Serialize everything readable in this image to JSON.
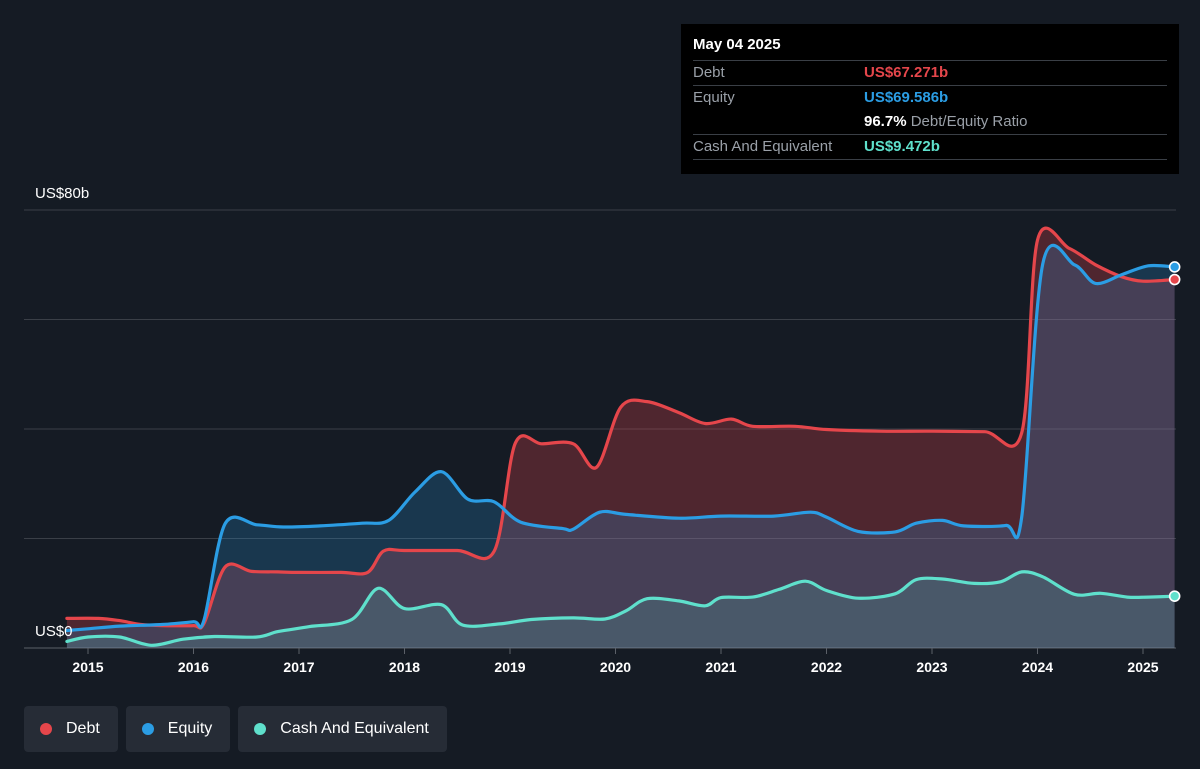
{
  "colors": {
    "debt": "#e5464b",
    "equity": "#2b9de4",
    "cash": "#5fe0cc",
    "background": "#151b24"
  },
  "tooltip": {
    "date": "May 04 2025",
    "debt_label": "Debt",
    "debt_value": "US$67.271b",
    "equity_label": "Equity",
    "equity_value": "US$69.586b",
    "ratio_value": "96.7%",
    "ratio_label": "Debt/Equity Ratio",
    "cash_label": "Cash And Equivalent",
    "cash_value": "US$9.472b"
  },
  "legend": {
    "debt": "Debt",
    "equity": "Equity",
    "cash": "Cash And Equivalent"
  },
  "chart_data": {
    "type": "area",
    "ylim": [
      0,
      80
    ],
    "y_tick_labels": {
      "top": "US$80b",
      "bottom": "US$0"
    },
    "x_ticks": [
      2015,
      2016,
      2017,
      2018,
      2019,
      2020,
      2021,
      2022,
      2023,
      2024,
      2025
    ],
    "x_tick_labels": [
      "2015",
      "2016",
      "2017",
      "2018",
      "2019",
      "2020",
      "2021",
      "2022",
      "2023",
      "2024",
      "2025"
    ],
    "grid": true,
    "legend_position": "bottom-left",
    "series": [
      {
        "name": "Debt",
        "color": "#e5464b",
        "points": [
          [
            2014.8,
            5.4
          ],
          [
            2015.1,
            5.4
          ],
          [
            2015.3,
            5.0
          ],
          [
            2015.5,
            4.3
          ],
          [
            2015.7,
            4.1
          ],
          [
            2016.0,
            4.1
          ],
          [
            2016.1,
            4.5
          ],
          [
            2016.3,
            14.8
          ],
          [
            2016.55,
            14.0
          ],
          [
            2016.8,
            13.9
          ],
          [
            2017.0,
            13.8
          ],
          [
            2017.4,
            13.8
          ],
          [
            2017.65,
            13.8
          ],
          [
            2017.8,
            17.7
          ],
          [
            2018.0,
            17.8
          ],
          [
            2018.5,
            17.8
          ],
          [
            2018.85,
            17.7
          ],
          [
            2019.05,
            37.4
          ],
          [
            2019.3,
            37.3
          ],
          [
            2019.6,
            37.3
          ],
          [
            2019.82,
            33.0
          ],
          [
            2020.05,
            44.0
          ],
          [
            2020.3,
            45.0
          ],
          [
            2020.6,
            43.0
          ],
          [
            2020.85,
            41.0
          ],
          [
            2021.1,
            41.8
          ],
          [
            2021.3,
            40.5
          ],
          [
            2021.7,
            40.5
          ],
          [
            2022.0,
            39.9
          ],
          [
            2022.5,
            39.6
          ],
          [
            2023.0,
            39.6
          ],
          [
            2023.5,
            39.5
          ],
          [
            2023.85,
            39.3
          ],
          [
            2024.0,
            74.5
          ],
          [
            2024.3,
            73.0
          ],
          [
            2024.55,
            70.0
          ],
          [
            2024.8,
            67.8
          ],
          [
            2025.0,
            67.0
          ],
          [
            2025.3,
            67.3
          ]
        ]
      },
      {
        "name": "Equity",
        "color": "#2b9de4",
        "points": [
          [
            2014.8,
            3.2
          ],
          [
            2015.0,
            3.5
          ],
          [
            2015.3,
            4.0
          ],
          [
            2015.7,
            4.3
          ],
          [
            2016.0,
            4.8
          ],
          [
            2016.1,
            5.1
          ],
          [
            2016.3,
            22.7
          ],
          [
            2016.6,
            22.5
          ],
          [
            2016.85,
            22.1
          ],
          [
            2017.2,
            22.3
          ],
          [
            2017.6,
            22.8
          ],
          [
            2017.85,
            23.3
          ],
          [
            2018.1,
            28.5
          ],
          [
            2018.35,
            32.2
          ],
          [
            2018.6,
            27.2
          ],
          [
            2018.85,
            26.7
          ],
          [
            2019.1,
            23.0
          ],
          [
            2019.5,
            21.8
          ],
          [
            2019.6,
            21.7
          ],
          [
            2019.85,
            24.8
          ],
          [
            2020.1,
            24.4
          ],
          [
            2020.6,
            23.7
          ],
          [
            2021.0,
            24.1
          ],
          [
            2021.5,
            24.1
          ],
          [
            2021.85,
            24.8
          ],
          [
            2022.0,
            23.9
          ],
          [
            2022.3,
            21.3
          ],
          [
            2022.65,
            21.2
          ],
          [
            2022.85,
            22.8
          ],
          [
            2023.1,
            23.3
          ],
          [
            2023.3,
            22.3
          ],
          [
            2023.7,
            22.4
          ],
          [
            2023.85,
            23.9
          ],
          [
            2024.05,
            70.2
          ],
          [
            2024.35,
            70.0
          ],
          [
            2024.55,
            66.6
          ],
          [
            2024.8,
            68.2
          ],
          [
            2025.05,
            69.8
          ],
          [
            2025.3,
            69.6
          ]
        ]
      },
      {
        "name": "Cash And Equivalent",
        "color": "#5fe0cc",
        "points": [
          [
            2014.8,
            1.2
          ],
          [
            2015.0,
            2.0
          ],
          [
            2015.3,
            2.0
          ],
          [
            2015.6,
            0.5
          ],
          [
            2015.9,
            1.6
          ],
          [
            2016.2,
            2.1
          ],
          [
            2016.6,
            2.0
          ],
          [
            2016.8,
            3.0
          ],
          [
            2017.1,
            3.9
          ],
          [
            2017.5,
            5.2
          ],
          [
            2017.75,
            10.9
          ],
          [
            2018.0,
            7.2
          ],
          [
            2018.35,
            7.9
          ],
          [
            2018.55,
            4.2
          ],
          [
            2018.9,
            4.4
          ],
          [
            2019.2,
            5.2
          ],
          [
            2019.6,
            5.5
          ],
          [
            2019.9,
            5.3
          ],
          [
            2020.1,
            6.8
          ],
          [
            2020.3,
            9.0
          ],
          [
            2020.6,
            8.6
          ],
          [
            2020.85,
            7.7
          ],
          [
            2021.0,
            9.2
          ],
          [
            2021.3,
            9.3
          ],
          [
            2021.55,
            10.7
          ],
          [
            2021.8,
            12.2
          ],
          [
            2022.0,
            10.5
          ],
          [
            2022.3,
            9.1
          ],
          [
            2022.65,
            9.9
          ],
          [
            2022.85,
            12.5
          ],
          [
            2023.1,
            12.6
          ],
          [
            2023.4,
            11.8
          ],
          [
            2023.65,
            12.1
          ],
          [
            2023.85,
            13.9
          ],
          [
            2024.05,
            13.0
          ],
          [
            2024.35,
            9.8
          ],
          [
            2024.6,
            10.0
          ],
          [
            2024.85,
            9.3
          ],
          [
            2025.05,
            9.3
          ],
          [
            2025.3,
            9.47
          ]
        ]
      }
    ]
  }
}
